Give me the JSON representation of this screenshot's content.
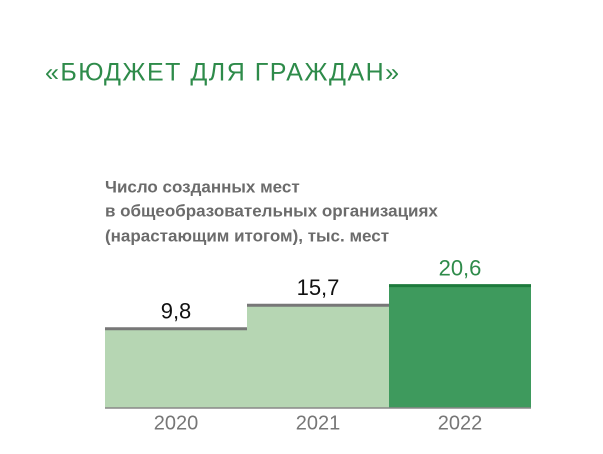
{
  "chart_data": {
    "type": "bar",
    "title": "«БЮДЖЕТ ДЛЯ ГРАЖДАН»",
    "subtitle": [
      "Число созданных мест",
      "в общеобразовательных организациях",
      "(нарастающим итогом), тыс. мест"
    ],
    "categories": [
      "2020",
      "2021",
      "2022"
    ],
    "values": [
      9.8,
      15.7,
      20.6
    ],
    "value_labels": [
      "9,8",
      "15,7",
      "20,6"
    ],
    "colors": [
      "#b6d6b3",
      "#b6d6b3",
      "#3e9a5d"
    ],
    "top_line_colors": [
      "#777777",
      "#777777",
      "#1d7a3c"
    ],
    "label_colors": [
      "#111111",
      "#111111",
      "#2e8b4a"
    ],
    "ylim": [
      -10,
      22
    ]
  }
}
